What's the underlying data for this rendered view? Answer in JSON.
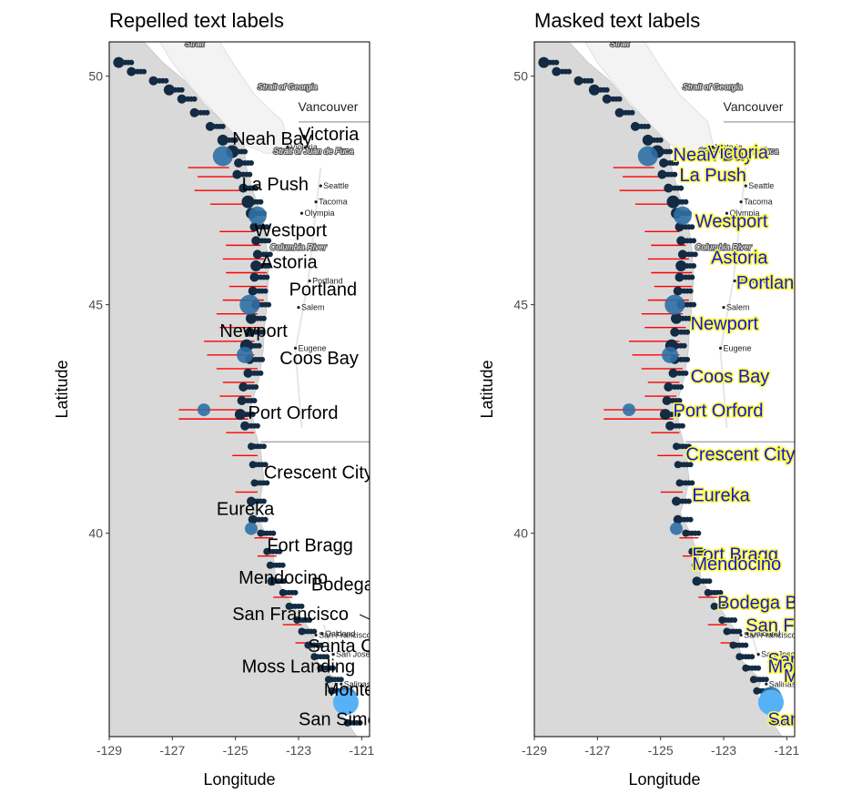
{
  "chart_data": [
    {
      "type": "scatter",
      "title": "Repelled text labels",
      "xlabel": "Longitude",
      "ylabel": "Latitude",
      "xlim": [
        -129,
        -120.75
      ],
      "ylim": [
        35.55,
        50.75
      ],
      "xticks": [
        "-129",
        "-127",
        "-125",
        "-123",
        "-121"
      ],
      "yticks": [
        "40",
        "45",
        "50"
      ],
      "label_style": "repel",
      "labels": [
        {
          "text": "Neah Bay",
          "lon": -125.1,
          "lat": 48.5
        },
        {
          "text": "Victoria",
          "lon": -123.0,
          "lat": 48.6
        },
        {
          "text": "La Push",
          "lon": -124.8,
          "lat": 47.5
        },
        {
          "text": "Westport",
          "lon": -124.4,
          "lat": 46.5
        },
        {
          "text": "Astoria",
          "lon": -124.2,
          "lat": 45.8
        },
        {
          "text": "Portland",
          "lon": -123.3,
          "lat": 45.2
        },
        {
          "text": "Newport",
          "lon": -125.5,
          "lat": 44.3
        },
        {
          "text": "Coos Bay",
          "lon": -123.6,
          "lat": 43.7
        },
        {
          "text": "Port Orford",
          "lon": -124.6,
          "lat": 42.5
        },
        {
          "text": "Crescent City",
          "lon": -124.1,
          "lat": 41.2
        },
        {
          "text": "Eureka",
          "lon": -125.6,
          "lat": 40.4
        },
        {
          "text": "Fort Bragg",
          "lon": -124.0,
          "lat": 39.6
        },
        {
          "text": "Mendocino",
          "lon": -124.9,
          "lat": 38.9
        },
        {
          "text": "Bodega Bay",
          "lon": -122.6,
          "lat": 38.75
        },
        {
          "text": "San Francisco",
          "lon": -125.1,
          "lat": 38.1
        },
        {
          "text": "Santa Cruz",
          "lon": -122.7,
          "lat": 37.4
        },
        {
          "text": "Moss Landing",
          "lon": -124.8,
          "lat": 36.95
        },
        {
          "text": "Monterey",
          "lon": -122.2,
          "lat": 36.45
        },
        {
          "text": "San Simeon",
          "lon": -123.0,
          "lat": 35.8
        }
      ]
    },
    {
      "type": "scatter",
      "title": "Masked text labels",
      "xlabel": "Longitude",
      "ylabel": "Latitude",
      "xlim": [
        -129,
        -120.75
      ],
      "ylim": [
        35.55,
        50.75
      ],
      "xticks": [
        "-129",
        "-127",
        "-125",
        "-123",
        "-121"
      ],
      "yticks": [
        "40",
        "45",
        "50"
      ],
      "label_style": "mask",
      "labels": [
        {
          "text": "Neah Bay",
          "lon": -124.6,
          "lat": 48.15
        },
        {
          "text": "Victoria",
          "lon": -123.5,
          "lat": 48.2
        },
        {
          "text": "La Push",
          "lon": -124.4,
          "lat": 47.7
        },
        {
          "text": "Westport",
          "lon": -123.9,
          "lat": 46.7
        },
        {
          "text": "Astoria",
          "lon": -123.4,
          "lat": 45.9
        },
        {
          "text": "Portland",
          "lon": -122.6,
          "lat": 45.35
        },
        {
          "text": "Newport",
          "lon": -124.05,
          "lat": 44.45
        },
        {
          "text": "Coos Bay",
          "lon": -124.05,
          "lat": 43.3
        },
        {
          "text": "Port Orford",
          "lon": -124.6,
          "lat": 42.55
        },
        {
          "text": "Crescent City",
          "lon": -124.2,
          "lat": 41.6
        },
        {
          "text": "Eureka",
          "lon": -124.0,
          "lat": 40.7
        },
        {
          "text": "Fort Bragg",
          "lon": -124.0,
          "lat": 39.4
        },
        {
          "text": "Mendocino",
          "lon": -124.0,
          "lat": 39.2
        },
        {
          "text": "Bodega Bay",
          "lon": -123.2,
          "lat": 38.35
        },
        {
          "text": "San Francisco",
          "lon": -122.3,
          "lat": 37.85
        },
        {
          "text": "Santa Cruz",
          "lon": -121.6,
          "lat": 37.1
        },
        {
          "text": "Moss Landing",
          "lon": -121.6,
          "lat": 36.95
        },
        {
          "text": "Monterey",
          "lon": -121.1,
          "lat": 36.75
        },
        {
          "text": "San Simeon",
          "lon": -121.6,
          "lat": 35.8
        }
      ]
    }
  ],
  "basemap": {
    "cities": [
      "Vancouver",
      "Victoria",
      "Seattle",
      "Tacoma",
      "Olympia",
      "Portland",
      "Salem",
      "Eugene",
      "Oakland",
      "San Francisco",
      "San Jose",
      "Salinas"
    ],
    "water_labels": [
      "Strait",
      "Strait of Georgia",
      "Strait of Juan de Fuca",
      "Columbia River"
    ]
  },
  "colors": {
    "ocean": "#d9d9d9",
    "land": "#ffffff",
    "point_dark": "#132b43",
    "point_light": "#56b1f7",
    "error_bar": "#ff0000"
  }
}
